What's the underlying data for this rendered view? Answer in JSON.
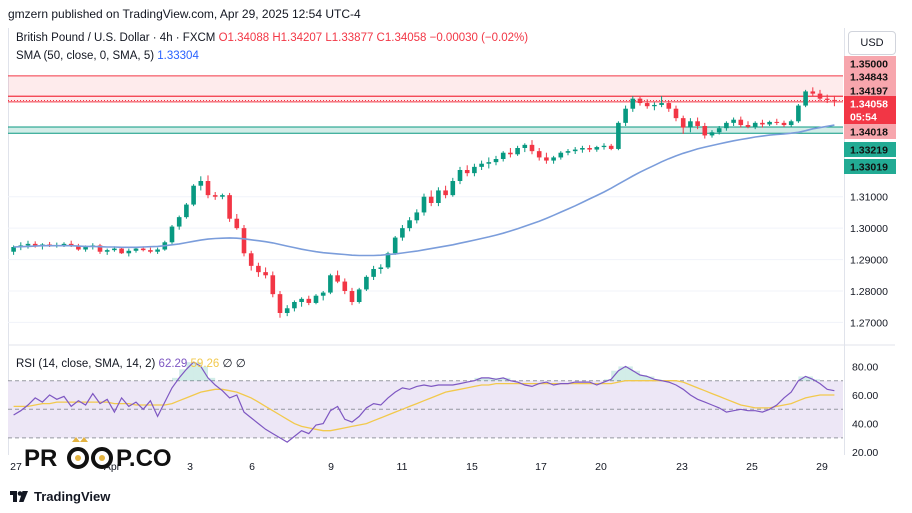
{
  "header": {
    "publisher": "gmzern published on TradingView.com, Apr 29, 2025 12:54 UTC-4"
  },
  "legend": {
    "symbol": "British Pound / U.S. Dollar · 4h · FXCM",
    "ohlc": "O1.34088 H1.34207 L1.33877 C1.34058 −0.00030 (−0.02%)",
    "sma_label": "SMA (50, close, 0, SMA, 5)",
    "sma_value": "1.33304",
    "rsi_label": "RSI (14, close, SMA, 14, 2)",
    "rsi_value": "62.29",
    "rsi_ma_value": "59.26",
    "rsi_extra": "∅ ∅"
  },
  "currency_button": "USD",
  "watermark": {
    "text": "PROOP.CO"
  },
  "footer": {
    "brand": "TradingView"
  },
  "colors": {
    "up": "#089981",
    "down": "#f23645",
    "sma": "#7b9ddb",
    "rsi": "#7e57c2",
    "rsi_ma": "#f2c94c",
    "rsi_band": "#ede7f6",
    "resistance": "#f23645",
    "support": "#089981"
  },
  "chart_data": [
    {
      "type": "candlestick",
      "title": "British Pound / U.S. Dollar · 4h · FXCM",
      "x_tick_labels": [
        "27",
        "Apr",
        "3",
        "6",
        "9",
        "11",
        "15",
        "17",
        "20",
        "23",
        "25",
        "29"
      ],
      "y_tick_labels": [
        "1.35000",
        "1.34843",
        "1.34197",
        "1.34058",
        "05:54",
        "1.34018",
        "1.33219",
        "1.33019",
        "1.31000",
        "1.30000",
        "1.29000",
        "1.28000",
        "1.27000"
      ],
      "ylim": [
        1.266,
        1.3535
      ],
      "price_labels": [
        {
          "text": "1.35000",
          "value": 1.35,
          "style": "plain"
        },
        {
          "text": "1.34843",
          "value": 1.34843,
          "style": "red"
        },
        {
          "text": "1.34197",
          "value": 1.34197,
          "style": "red"
        },
        {
          "text": "1.34058",
          "value": 1.34058,
          "style": "red"
        },
        {
          "text": "05:54",
          "value": 1.338,
          "style": "red"
        },
        {
          "text": "1.34018",
          "value": 1.34018,
          "style": "red"
        },
        {
          "text": "1.33219",
          "value": 1.33219,
          "style": "green"
        },
        {
          "text": "1.33019",
          "value": 1.33019,
          "style": "green"
        }
      ],
      "zones": [
        {
          "name": "resistance",
          "from": 1.34197,
          "to": 1.34843,
          "style": "red"
        },
        {
          "name": "resistance-thin",
          "from": 1.34018,
          "to": 1.34197,
          "style": "red"
        },
        {
          "name": "support",
          "from": 1.33019,
          "to": 1.33219,
          "style": "green"
        }
      ],
      "candles": [
        [
          1.2925,
          1.2945,
          1.2915,
          1.294
        ],
        [
          1.294,
          1.2955,
          1.293,
          1.2945
        ],
        [
          1.2945,
          1.296,
          1.2935,
          1.295
        ],
        [
          1.295,
          1.2958,
          1.2938,
          1.2942
        ],
        [
          1.2942,
          1.2952,
          1.2932,
          1.2948
        ],
        [
          1.2948,
          1.2956,
          1.294,
          1.2944
        ],
        [
          1.2944,
          1.2954,
          1.2938,
          1.2946
        ],
        [
          1.2946,
          1.2955,
          1.294,
          1.295
        ],
        [
          1.295,
          1.296,
          1.294,
          1.2944
        ],
        [
          1.2944,
          1.295,
          1.2928,
          1.2932
        ],
        [
          1.2932,
          1.2945,
          1.2925,
          1.294
        ],
        [
          1.294,
          1.2952,
          1.2932,
          1.2945
        ],
        [
          1.2945,
          1.295,
          1.2918,
          1.2925
        ],
        [
          1.2925,
          1.2935,
          1.2915,
          1.293
        ],
        [
          1.293,
          1.2942,
          1.2925,
          1.2935
        ],
        [
          1.2935,
          1.294,
          1.2918,
          1.292
        ],
        [
          1.292,
          1.2935,
          1.291,
          1.2928
        ],
        [
          1.2928,
          1.294,
          1.2922,
          1.2935
        ],
        [
          1.2935,
          1.2942,
          1.2926,
          1.293
        ],
        [
          1.293,
          1.2938,
          1.292,
          1.2925
        ],
        [
          1.2925,
          1.2938,
          1.2918,
          1.2932
        ],
        [
          1.2932,
          1.296,
          1.2928,
          1.2955
        ],
        [
          1.2955,
          1.301,
          1.295,
          1.3005
        ],
        [
          1.3005,
          1.304,
          1.2995,
          1.3035
        ],
        [
          1.3035,
          1.308,
          1.303,
          1.3075
        ],
        [
          1.3075,
          1.314,
          1.307,
          1.3135
        ],
        [
          1.3135,
          1.3165,
          1.312,
          1.315
        ],
        [
          1.315,
          1.3168,
          1.3095,
          1.3105
        ],
        [
          1.3105,
          1.3115,
          1.309,
          1.31
        ],
        [
          1.31,
          1.311,
          1.3092,
          1.3105
        ],
        [
          1.3105,
          1.3112,
          1.302,
          1.303
        ],
        [
          1.303,
          1.3045,
          1.2995,
          1.3
        ],
        [
          1.3,
          1.301,
          1.291,
          1.292
        ],
        [
          1.292,
          1.2928,
          1.2865,
          1.288
        ],
        [
          1.288,
          1.289,
          1.2845,
          1.286
        ],
        [
          1.286,
          1.2875,
          1.284,
          1.285
        ],
        [
          1.285,
          1.2862,
          1.278,
          1.279
        ],
        [
          1.279,
          1.28,
          1.2715,
          1.273
        ],
        [
          1.273,
          1.2755,
          1.272,
          1.2745
        ],
        [
          1.2745,
          1.277,
          1.2735,
          1.2765
        ],
        [
          1.2765,
          1.278,
          1.275,
          1.2775
        ],
        [
          1.2775,
          1.2785,
          1.2755,
          1.2762
        ],
        [
          1.2762,
          1.279,
          1.2758,
          1.2785
        ],
        [
          1.2785,
          1.28,
          1.277,
          1.2795
        ],
        [
          1.2795,
          1.2855,
          1.279,
          1.285
        ],
        [
          1.285,
          1.2865,
          1.2825,
          1.283
        ],
        [
          1.283,
          1.284,
          1.279,
          1.28
        ],
        [
          1.28,
          1.281,
          1.2755,
          1.2765
        ],
        [
          1.2765,
          1.281,
          1.276,
          1.2805
        ],
        [
          1.2805,
          1.285,
          1.28,
          1.2845
        ],
        [
          1.2845,
          1.288,
          1.2835,
          1.287
        ],
        [
          1.287,
          1.2885,
          1.2855,
          1.2875
        ],
        [
          1.2875,
          1.2925,
          1.287,
          1.292
        ],
        [
          1.292,
          1.2975,
          1.2915,
          1.297
        ],
        [
          1.297,
          1.301,
          1.296,
          1.3
        ],
        [
          1.3,
          1.3035,
          1.299,
          1.3025
        ],
        [
          1.3025,
          1.306,
          1.3015,
          1.305
        ],
        [
          1.305,
          1.311,
          1.304,
          1.31
        ],
        [
          1.31,
          1.312,
          1.307,
          1.308
        ],
        [
          1.308,
          1.313,
          1.307,
          1.312
        ],
        [
          1.312,
          1.3135,
          1.3095,
          1.3105
        ],
        [
          1.3105,
          1.316,
          1.31,
          1.315
        ],
        [
          1.315,
          1.3195,
          1.314,
          1.3185
        ],
        [
          1.3185,
          1.32,
          1.3165,
          1.3175
        ],
        [
          1.3175,
          1.3205,
          1.3165,
          1.3195
        ],
        [
          1.3195,
          1.3215,
          1.3185,
          1.3205
        ],
        [
          1.3205,
          1.3225,
          1.319,
          1.321
        ],
        [
          1.321,
          1.323,
          1.32,
          1.322
        ],
        [
          1.322,
          1.3245,
          1.3212,
          1.324
        ],
        [
          1.324,
          1.3255,
          1.3225,
          1.3235
        ],
        [
          1.3235,
          1.3262,
          1.323,
          1.3255
        ],
        [
          1.3255,
          1.327,
          1.3242,
          1.3265
        ],
        [
          1.3265,
          1.328,
          1.3235,
          1.3245
        ],
        [
          1.3245,
          1.3255,
          1.3215,
          1.3225
        ],
        [
          1.3225,
          1.324,
          1.3205,
          1.3215
        ],
        [
          1.3215,
          1.323,
          1.3205,
          1.3225
        ],
        [
          1.3225,
          1.3245,
          1.3218,
          1.324
        ],
        [
          1.324,
          1.3252,
          1.3232,
          1.3245
        ],
        [
          1.3245,
          1.3258,
          1.3236,
          1.325
        ],
        [
          1.325,
          1.3262,
          1.324,
          1.3255
        ],
        [
          1.3255,
          1.3264,
          1.3242,
          1.325
        ],
        [
          1.325,
          1.3262,
          1.3243,
          1.3258
        ],
        [
          1.3258,
          1.327,
          1.325,
          1.3262
        ],
        [
          1.3262,
          1.3268,
          1.3248,
          1.3252
        ],
        [
          1.3252,
          1.334,
          1.3248,
          1.3335
        ],
        [
          1.3335,
          1.339,
          1.3325,
          1.338
        ],
        [
          1.338,
          1.342,
          1.337,
          1.3412
        ],
        [
          1.3412,
          1.3418,
          1.339,
          1.3398
        ],
        [
          1.3398,
          1.341,
          1.338,
          1.3388
        ],
        [
          1.3388,
          1.34,
          1.3375,
          1.3392
        ],
        [
          1.3392,
          1.342,
          1.3385,
          1.3398
        ],
        [
          1.3398,
          1.3405,
          1.337,
          1.338
        ],
        [
          1.338,
          1.339,
          1.334,
          1.335
        ],
        [
          1.335,
          1.3358,
          1.33,
          1.332
        ],
        [
          1.332,
          1.335,
          1.3305,
          1.334
        ],
        [
          1.334,
          1.3352,
          1.3315,
          1.3325
        ],
        [
          1.3325,
          1.3335,
          1.3285,
          1.3295
        ],
        [
          1.3295,
          1.3312,
          1.3288,
          1.3305
        ],
        [
          1.3305,
          1.3325,
          1.3298,
          1.3318
        ],
        [
          1.3318,
          1.334,
          1.331,
          1.3335
        ],
        [
          1.3335,
          1.3352,
          1.3325,
          1.3345
        ],
        [
          1.3345,
          1.3355,
          1.332,
          1.3328
        ],
        [
          1.3328,
          1.334,
          1.3318,
          1.3322
        ],
        [
          1.3322,
          1.334,
          1.3315,
          1.3335
        ],
        [
          1.3335,
          1.3345,
          1.332,
          1.333
        ],
        [
          1.333,
          1.3342,
          1.3325,
          1.3338
        ],
        [
          1.3338,
          1.3348,
          1.3328,
          1.3335
        ],
        [
          1.3335,
          1.3342,
          1.3322,
          1.3328
        ],
        [
          1.3328,
          1.3345,
          1.3322,
          1.334
        ],
        [
          1.334,
          1.3395,
          1.3335,
          1.339
        ],
        [
          1.339,
          1.344,
          1.3385,
          1.3435
        ],
        [
          1.3435,
          1.3448,
          1.342,
          1.3428
        ],
        [
          1.3428,
          1.344,
          1.3405,
          1.3412
        ],
        [
          1.3412,
          1.3425,
          1.3398,
          1.3408
        ],
        [
          1.3408,
          1.3421,
          1.3388,
          1.3406
        ]
      ],
      "sma_series": [
        1.294,
        1.2941,
        1.2942,
        1.2943,
        1.2944,
        1.2944,
        1.2944,
        1.2944,
        1.2944,
        1.2943,
        1.2942,
        1.2942,
        1.2941,
        1.294,
        1.294,
        1.2939,
        1.2939,
        1.2939,
        1.294,
        1.2941,
        1.2942,
        1.2944,
        1.2947,
        1.295,
        1.2954,
        1.2958,
        1.2962,
        1.2965,
        1.2967,
        1.2968,
        1.2969,
        1.2968,
        1.2966,
        1.2963,
        1.296,
        1.2957,
        1.2953,
        1.2948,
        1.2943,
        1.2938,
        1.2933,
        1.2929,
        1.2925,
        1.2922,
        1.292,
        1.2918,
        1.2916,
        1.2914,
        1.2913,
        1.2913,
        1.2913,
        1.2914,
        1.2916,
        1.2918,
        1.2921,
        1.2924,
        1.2927,
        1.2931,
        1.2935,
        1.2939,
        1.2943,
        1.2947,
        1.2952,
        1.2957,
        1.2962,
        1.2967,
        1.2972,
        1.2978,
        1.2984,
        1.2991,
        1.2998,
        1.3006,
        1.3014,
        1.3022,
        1.3031,
        1.3041,
        1.3051,
        1.3061,
        1.3071,
        1.3082,
        1.3093,
        1.3104,
        1.3115,
        1.3127,
        1.314,
        1.3153,
        1.3166,
        1.3178,
        1.3189,
        1.32,
        1.3211,
        1.3221,
        1.323,
        1.3238,
        1.3245,
        1.3252,
        1.3258,
        1.3263,
        1.3268,
        1.3273,
        1.3278,
        1.3282,
        1.3286,
        1.329,
        1.3293,
        1.3296,
        1.3298,
        1.33,
        1.3302,
        1.3305,
        1.331,
        1.3316,
        1.332,
        1.3324,
        1.3328
      ]
    },
    {
      "type": "line",
      "title": "RSI (14, close, SMA, 14, 2)",
      "ylim": [
        18,
        88
      ],
      "y_tick_labels": [
        "80.00",
        "60.00",
        "40.00",
        "20.00"
      ],
      "band": [
        30,
        70
      ],
      "midline": 50,
      "series": [
        {
          "name": "RSI",
          "values": [
            46,
            49,
            53,
            58,
            55,
            60,
            57,
            59,
            52,
            56,
            53,
            61,
            54,
            57,
            48,
            58,
            52,
            55,
            50,
            56,
            45,
            55,
            65,
            72,
            78,
            83,
            80,
            72,
            67,
            63,
            58,
            60,
            48,
            44,
            40,
            36,
            33,
            30,
            27,
            31,
            35,
            33,
            39,
            40,
            49,
            52,
            43,
            41,
            45,
            51,
            54,
            53,
            58,
            62,
            65,
            64,
            66,
            67,
            66,
            67,
            67,
            67,
            68,
            69,
            70,
            72,
            72,
            71,
            72,
            70,
            69,
            67,
            66,
            68,
            69,
            67,
            68,
            68,
            69,
            69,
            69,
            67,
            69,
            71,
            77,
            80,
            77,
            74,
            73,
            71,
            70,
            69,
            67,
            64,
            60,
            57,
            55,
            53,
            51,
            48,
            49,
            50,
            49,
            49,
            48,
            50,
            53,
            58,
            62,
            70,
            73,
            71,
            68,
            64,
            63
          ]
        },
        {
          "name": "SMA",
          "values": [
            52,
            52,
            52,
            53,
            54,
            54,
            55,
            55,
            55,
            55,
            55,
            55,
            55,
            55,
            54,
            54,
            54,
            53,
            53,
            53,
            53,
            53,
            54,
            56,
            58,
            60,
            62,
            63,
            64,
            64,
            63,
            62,
            60,
            58,
            55,
            52,
            49,
            46,
            43,
            40,
            38,
            37,
            36,
            35,
            35,
            36,
            37,
            38,
            39,
            40,
            42,
            44,
            46,
            48,
            50,
            52,
            54,
            56,
            58,
            60,
            62,
            63,
            64,
            65,
            66,
            67,
            67,
            68,
            68,
            68,
            68,
            68,
            68,
            68,
            68,
            68,
            68,
            68,
            68,
            68,
            68,
            68,
            68,
            68,
            69,
            70,
            70,
            70,
            70,
            70,
            70,
            70,
            70,
            69,
            67,
            65,
            63,
            61,
            59,
            57,
            55,
            53,
            52,
            51,
            51,
            51,
            52,
            53,
            54,
            56,
            58,
            59,
            60,
            60,
            60
          ]
        }
      ]
    }
  ]
}
